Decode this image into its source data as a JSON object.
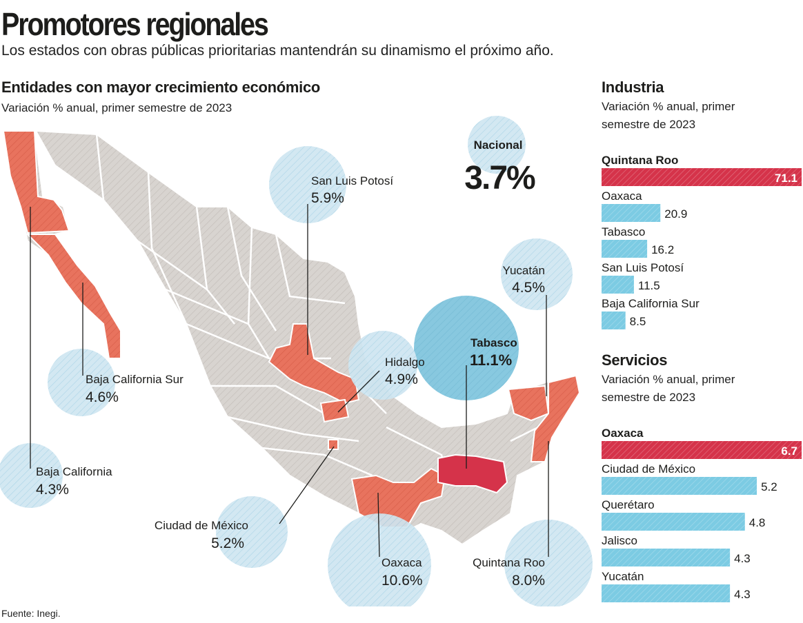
{
  "header": {
    "title": "Promotores regionales",
    "subtitle": "Los estados con obras públicas prioritarias mantendrán su dinamismo el próximo año."
  },
  "map_section": {
    "title": "Entidades con mayor crecimiento económico",
    "subtitle": "Variación % anual, primer semestre de 2023"
  },
  "industry_section": {
    "title": "Industria",
    "subtitle_line1": "Variación % anual, primer",
    "subtitle_line2": "semestre de 2023"
  },
  "services_section": {
    "title": "Servicios",
    "subtitle_line1": "Variación % anual, primer",
    "subtitle_line2": "semestre de 2023"
  },
  "footer": {
    "source": "Fuente: Inegi."
  },
  "colors": {
    "highlight": "#d5334a",
    "bar_blue": "#7ccbe3",
    "state_red": "#e8735e",
    "tabasco_red": "#d5334a",
    "map_gray": "#d8d4d0",
    "bubble_blue": "#cfe6f1",
    "bubble_blue_dark": "#7ec4dd"
  },
  "chart_data": [
    {
      "type": "bubble-map",
      "title": "Entidades con mayor crecimiento económico",
      "subtitle": "Variación % anual, primer semestre de 2023",
      "national": {
        "label": "Nacional",
        "value": 3.7,
        "display": "3.7%"
      },
      "states": [
        {
          "name": "San Luis Potosí",
          "value": 5.9,
          "display": "5.9%"
        },
        {
          "name": "Yucatán",
          "value": 4.5,
          "display": "4.5%"
        },
        {
          "name": "Tabasco",
          "value": 11.1,
          "display": "11.1%"
        },
        {
          "name": "Hidalgo",
          "value": 4.9,
          "display": "4.9%"
        },
        {
          "name": "Baja California Sur",
          "value": 4.6,
          "display": "4.6%"
        },
        {
          "name": "Baja California",
          "value": 4.3,
          "display": "4.3%"
        },
        {
          "name": "Ciudad de México",
          "value": 5.2,
          "display": "5.2%"
        },
        {
          "name": "Oaxaca",
          "value": 10.6,
          "display": "10.6%"
        },
        {
          "name": "Quintana Roo",
          "value": 8.0,
          "display": "8.0%"
        }
      ]
    },
    {
      "type": "bar",
      "orientation": "horizontal",
      "title": "Industria",
      "subtitle": "Variación % anual, primer semestre de 2023",
      "categories": [
        "Quintana Roo",
        "Oaxaca",
        "Tabasco",
        "San Luis Potosí",
        "Baja California Sur"
      ],
      "values": [
        71.1,
        20.9,
        16.2,
        11.5,
        8.5
      ],
      "labels": [
        "71.1",
        "20.9",
        "16.2",
        "11.5",
        "8.5"
      ],
      "highlight": "Quintana Roo"
    },
    {
      "type": "bar",
      "orientation": "horizontal",
      "title": "Servicios",
      "subtitle": "Variación % anual, primer semestre de 2023",
      "categories": [
        "Oaxaca",
        "Ciudad de México",
        "Querétaro",
        "Jalisco",
        "Yucatán"
      ],
      "values": [
        6.7,
        5.2,
        4.8,
        4.3,
        4.3
      ],
      "labels": [
        "6.7",
        "5.2",
        "4.8",
        "4.3",
        "4.3"
      ],
      "highlight": "Oaxaca"
    }
  ]
}
